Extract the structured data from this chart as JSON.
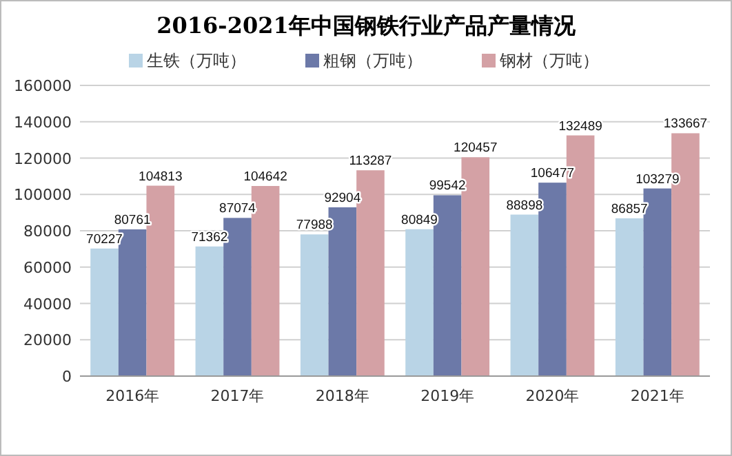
{
  "chart_data": {
    "type": "bar",
    "title": "2016-2021年中国钢铁行业产品产量情况",
    "categories": [
      "2016年",
      "2017年",
      "2018年",
      "2019年",
      "2020年",
      "2021年"
    ],
    "series": [
      {
        "name": "生铁（万吨）",
        "color": "#b9d4e6",
        "values": [
          70227,
          71362,
          77988,
          80849,
          88898,
          86857
        ]
      },
      {
        "name": "粗钢（万吨）",
        "color": "#6c79a8",
        "values": [
          80761,
          87074,
          92904,
          99542,
          106477,
          103279
        ]
      },
      {
        "name": "钢材（万吨）",
        "color": "#d4a1a5",
        "values": [
          104813,
          104642,
          113287,
          120457,
          132489,
          133667
        ]
      }
    ],
    "ylim": [
      0,
      160000
    ],
    "yticks": [
      0,
      20000,
      40000,
      60000,
      80000,
      100000,
      120000,
      140000,
      160000
    ],
    "grid": "y",
    "legend": "top",
    "data_labels": true
  }
}
